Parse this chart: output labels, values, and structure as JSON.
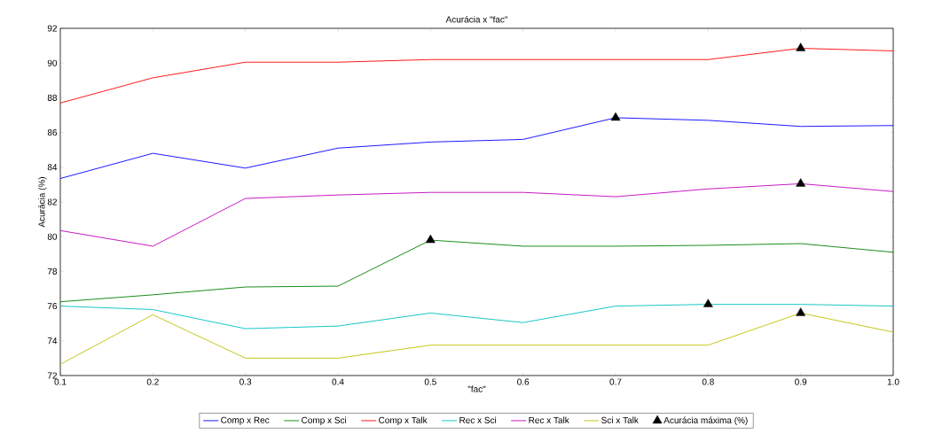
{
  "chart_data": {
    "type": "line",
    "title": "Acurácia x \"fac\"",
    "xlabel": "\"fac\"",
    "ylabel": "Acurácia (%)",
    "x": [
      0.1,
      0.2,
      0.3,
      0.4,
      0.5,
      0.6,
      0.7,
      0.8,
      0.9,
      1.0
    ],
    "xlim": [
      0.1,
      1.0
    ],
    "ylim": [
      72,
      92
    ],
    "xticks": [
      0.1,
      0.2,
      0.3,
      0.4,
      0.5,
      0.6,
      0.7,
      0.8,
      0.9,
      {
        "value": 1.0,
        "label": "1.0"
      }
    ],
    "yticks": [
      72,
      74,
      76,
      78,
      80,
      82,
      84,
      86,
      88,
      90,
      92
    ],
    "grid": false,
    "legend": "bottom",
    "marker": "none",
    "line_style": "solid",
    "series": [
      {
        "name": "Comp x Rec",
        "color": "#0000ff",
        "values": [
          83.35,
          84.8,
          83.95,
          85.1,
          85.45,
          85.6,
          86.85,
          86.7,
          86.35,
          86.4
        ]
      },
      {
        "name": "Comp x Sci",
        "color": "#008000",
        "values": [
          76.25,
          76.65,
          77.1,
          77.15,
          79.8,
          79.45,
          79.45,
          79.5,
          79.6,
          79.1
        ]
      },
      {
        "name": "Comp x Talk",
        "color": "#ff0000",
        "values": [
          87.7,
          89.15,
          90.05,
          90.05,
          90.2,
          90.2,
          90.2,
          90.2,
          90.85,
          90.7
        ]
      },
      {
        "name": "Rec x Sci",
        "color": "#00bfbf",
        "values": [
          76.0,
          75.8,
          74.7,
          74.85,
          75.6,
          75.05,
          76.0,
          76.1,
          76.1,
          76.0
        ]
      },
      {
        "name": "Rec x Talk",
        "color": "#bf00bf",
        "values": [
          80.35,
          79.45,
          82.2,
          82.4,
          82.55,
          82.55,
          82.3,
          82.75,
          83.05,
          82.6
        ]
      },
      {
        "name": "Sci x Talk",
        "color": "#bfbf00",
        "values": [
          72.65,
          75.5,
          73.0,
          73.0,
          73.75,
          73.75,
          73.75,
          73.75,
          75.6,
          74.5
        ]
      },
      {
        "name": "Acurácia máxima (%)",
        "type": "scatter",
        "marker": "triangle",
        "color": "#000000",
        "x": [
          0.9,
          0.7,
          0.9,
          0.5,
          0.8,
          0.9
        ],
        "values": [
          90.85,
          86.85,
          83.05,
          79.8,
          76.1,
          75.6
        ]
      }
    ]
  }
}
